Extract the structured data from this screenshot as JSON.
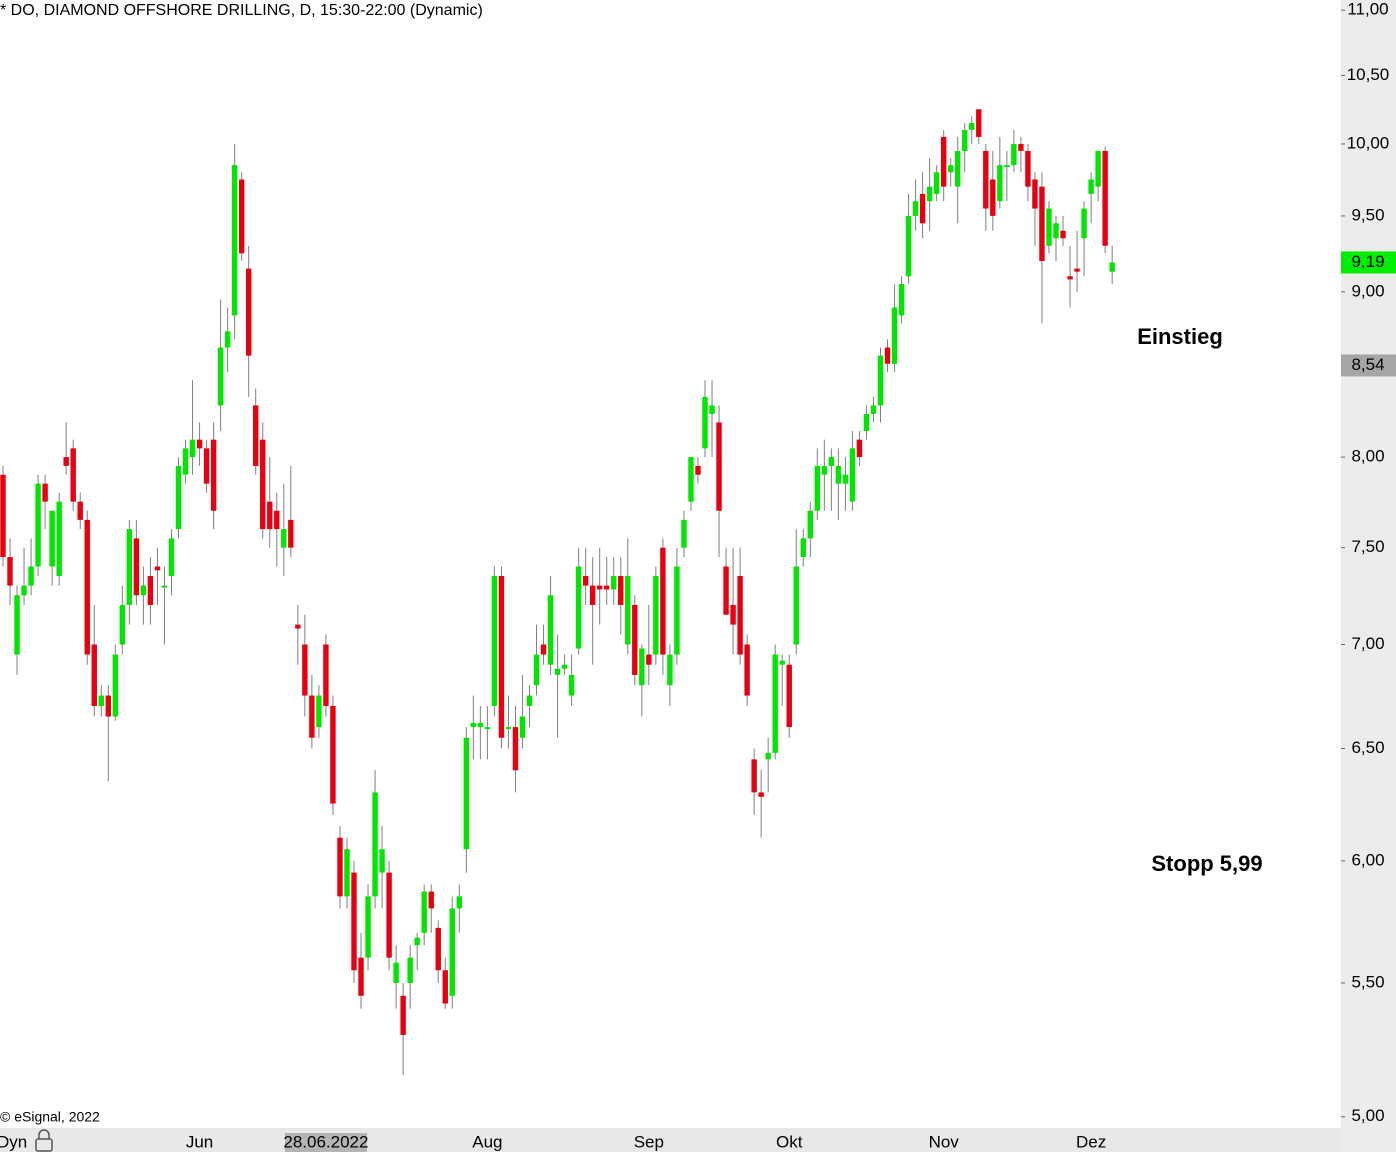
{
  "chart_data": {
    "type": "candlestick",
    "title": "* DO, DIAMOND OFFSHORE DRILLING, D, 15:30-22:00 (Dynamic)",
    "source": "© eSignal, 2022",
    "x_axis_prefix": "Dyn",
    "log_scale": true,
    "ylim": [
      4.96,
      11.08
    ],
    "yticks": [
      {
        "value": 5,
        "label": "5,00"
      },
      {
        "value": 5.5,
        "label": "5,50"
      },
      {
        "value": 6,
        "label": "6,00"
      },
      {
        "value": 6.5,
        "label": "6,50"
      },
      {
        "value": 7,
        "label": "7,00"
      },
      {
        "value": 7.5,
        "label": "7,50"
      },
      {
        "value": 8,
        "label": "8,00"
      },
      {
        "value": 9,
        "label": "9,00"
      },
      {
        "value": 9.5,
        "label": "9,50"
      },
      {
        "value": 10,
        "label": "10,00"
      },
      {
        "value": 10.5,
        "label": "10,50"
      },
      {
        "value": 11,
        "label": "11,00"
      }
    ],
    "up_color": "#00e600",
    "down_color": "#e60012",
    "wick_color": "#7f7f7f",
    "crosshair_index": 46,
    "categories": [
      null,
      null,
      null,
      null,
      null,
      null,
      null,
      null,
      null,
      null,
      null,
      null,
      null,
      null,
      null,
      null,
      null,
      null,
      null,
      null,
      null,
      null,
      null,
      null,
      null,
      null,
      null,
      null,
      "Jun",
      null,
      null,
      null,
      null,
      null,
      null,
      null,
      null,
      null,
      null,
      null,
      null,
      null,
      null,
      null,
      null,
      null,
      "28.06.2022",
      null,
      null,
      null,
      null,
      null,
      null,
      null,
      null,
      null,
      null,
      null,
      null,
      null,
      null,
      null,
      null,
      null,
      null,
      null,
      null,
      null,
      null,
      "Aug",
      null,
      null,
      null,
      null,
      null,
      null,
      null,
      null,
      null,
      null,
      null,
      null,
      null,
      null,
      null,
      null,
      null,
      null,
      null,
      null,
      null,
      null,
      "Sep",
      null,
      null,
      null,
      null,
      null,
      null,
      null,
      null,
      null,
      null,
      null,
      null,
      null,
      null,
      null,
      null,
      null,
      null,
      null,
      "Okt",
      null,
      null,
      null,
      null,
      null,
      null,
      null,
      null,
      null,
      null,
      null,
      null,
      null,
      null,
      null,
      null,
      null,
      null,
      null,
      null,
      null,
      "Nov",
      null,
      null,
      null,
      null,
      null,
      null,
      null,
      null,
      null,
      null,
      null,
      null,
      null,
      null,
      null,
      null,
      null,
      null,
      null,
      null,
      "Dez",
      null,
      null,
      null
    ],
    "open": [
      7.9,
      7.45,
      6.95,
      7.25,
      7.3,
      7.4,
      7.85,
      7.4,
      7.35,
      8.0,
      8.05,
      7.75,
      7.65,
      7.0,
      6.7,
      6.75,
      6.65,
      7.0,
      7.2,
      7.55,
      7.25,
      7.35,
      7.4,
      7.3,
      7.35,
      7.6,
      7.9,
      8.0,
      8.1,
      8.05,
      8.1,
      8.3,
      8.65,
      8.85,
      9.75,
      9.15,
      8.3,
      8.1,
      7.75,
      7.7,
      7.5,
      7.65,
      7.1,
      7.0,
      6.75,
      6.6,
      7.0,
      6.7,
      6.1,
      5.85,
      5.95,
      5.6,
      5.6,
      5.85,
      5.95,
      5.95,
      5.5,
      5.45,
      5.5,
      5.65,
      5.7,
      5.87,
      5.72,
      5.55,
      5.45,
      5.8,
      6.05,
      6.6,
      6.6,
      6.6,
      6.7,
      7.35,
      6.6,
      6.6,
      6.55,
      6.7,
      6.8,
      7.0,
      6.9,
      6.85,
      6.88,
      6.75,
      6.98,
      7.35,
      7.3,
      7.3,
      7.3,
      7.28,
      7.35,
      7.0,
      7.2,
      6.8,
      6.95,
      6.95,
      7.5,
      6.8,
      6.95,
      7.5,
      7.75,
      7.95,
      8.05,
      8.25,
      8.2,
      7.4,
      7.2,
      7.35,
      7.0,
      6.45,
      6.3,
      6.45,
      6.48,
      6.9,
      6.9,
      7.0,
      7.45,
      7.55,
      7.7,
      7.9,
      7.95,
      7.85,
      7.85,
      7.75,
      8.1,
      8.15,
      8.25,
      8.3,
      8.65,
      8.55,
      8.85,
      9.1,
      9.5,
      9.65,
      9.6,
      9.65,
      10.05,
      9.8,
      9.7,
      9.95,
      10.1,
      10.25,
      9.95,
      9.75,
      9.6,
      9.85,
      9.85,
      10.0,
      9.95,
      9.75,
      9.7,
      9.3,
      9.35,
      9.4,
      9.1,
      9.15,
      9.35,
      9.65,
      9.7,
      9.95,
      9.13
    ],
    "high": [
      7.95,
      7.55,
      7.3,
      7.5,
      7.55,
      7.9,
      7.9,
      7.65,
      7.8,
      8.2,
      8.1,
      7.8,
      7.7,
      7.2,
      6.8,
      6.8,
      7.0,
      7.3,
      7.65,
      7.65,
      7.4,
      7.45,
      7.5,
      7.4,
      7.6,
      8.0,
      8.1,
      8.45,
      8.2,
      8.1,
      8.2,
      8.95,
      8.9,
      10.0,
      9.8,
      9.3,
      8.4,
      8.2,
      8.0,
      7.8,
      7.85,
      7.95,
      7.2,
      7.15,
      6.85,
      6.8,
      7.05,
      6.75,
      6.15,
      6.1,
      6.0,
      5.7,
      5.9,
      6.4,
      6.15,
      6.0,
      5.65,
      5.5,
      5.65,
      5.7,
      5.9,
      5.9,
      5.75,
      5.6,
      5.85,
      5.9,
      6.6,
      6.75,
      6.7,
      6.7,
      7.4,
      7.4,
      6.75,
      6.7,
      6.85,
      6.8,
      7.1,
      7.1,
      7.35,
      7.05,
      6.95,
      6.95,
      7.5,
      7.5,
      7.45,
      7.5,
      7.45,
      7.45,
      7.45,
      7.55,
      7.25,
      7.0,
      7.2,
      7.4,
      7.55,
      7.0,
      7.5,
      7.7,
      8.0,
      8.0,
      8.45,
      8.45,
      8.3,
      7.5,
      7.5,
      7.5,
      7.05,
      6.5,
      6.4,
      6.55,
      7.0,
      6.95,
      6.95,
      7.6,
      7.6,
      7.75,
      8.05,
      8.1,
      8.05,
      8.05,
      8.0,
      8.15,
      8.15,
      8.3,
      8.35,
      8.65,
      8.7,
      9.05,
      9.1,
      9.65,
      9.75,
      9.8,
      9.9,
      9.85,
      10.1,
      9.9,
      10.05,
      10.15,
      10.2,
      10.25,
      10.0,
      9.95,
      10.05,
      9.95,
      10.1,
      10.05,
      10.0,
      9.8,
      9.8,
      9.6,
      9.5,
      9.5,
      9.3,
      9.4,
      9.6,
      9.8,
      9.95,
      9.98,
      9.3
    ],
    "low": [
      7.4,
      7.2,
      6.85,
      7.2,
      7.25,
      7.35,
      7.6,
      7.3,
      7.3,
      7.9,
      7.7,
      7.6,
      6.9,
      6.65,
      6.65,
      6.35,
      6.63,
      6.95,
      7.1,
      7.2,
      7.1,
      7.1,
      7.2,
      7.0,
      7.25,
      7.55,
      7.85,
      7.9,
      7.95,
      7.8,
      7.6,
      8.15,
      8.5,
      8.7,
      9.2,
      8.35,
      7.9,
      7.55,
      7.5,
      7.4,
      7.35,
      7.45,
      6.9,
      6.65,
      6.5,
      6.55,
      6.65,
      6.2,
      5.8,
      5.8,
      5.5,
      5.4,
      5.55,
      5.8,
      5.8,
      5.55,
      5.4,
      5.15,
      5.4,
      5.55,
      5.65,
      5.7,
      5.5,
      5.4,
      5.4,
      5.7,
      5.95,
      6.45,
      6.45,
      6.45,
      6.65,
      6.5,
      6.5,
      6.3,
      6.5,
      6.6,
      6.75,
      6.9,
      6.85,
      6.55,
      6.85,
      6.7,
      6.95,
      7.2,
      6.9,
      7.1,
      7.2,
      7.2,
      7.05,
      6.95,
      6.8,
      6.65,
      6.8,
      6.9,
      6.85,
      6.7,
      6.9,
      7.45,
      7.7,
      7.85,
      8.0,
      8.0,
      7.45,
      7.15,
      6.95,
      6.9,
      6.7,
      6.2,
      6.1,
      6.3,
      6.45,
      6.7,
      6.55,
      6.95,
      7.4,
      7.45,
      7.65,
      7.7,
      7.7,
      7.65,
      7.7,
      7.7,
      7.95,
      8.1,
      8.2,
      8.2,
      8.5,
      8.5,
      8.8,
      9.05,
      9.4,
      9.35,
      9.4,
      9.6,
      9.6,
      9.7,
      9.45,
      9.8,
      10.0,
      10.0,
      9.4,
      9.4,
      9.55,
      9.6,
      9.8,
      9.8,
      9.6,
      9.3,
      8.8,
      9.25,
      9.2,
      9.3,
      8.9,
      9.0,
      9.1,
      9.45,
      9.6,
      9.25,
      9.05
    ],
    "close": [
      7.45,
      7.3,
      7.25,
      7.3,
      7.4,
      7.85,
      7.75,
      7.7,
      7.75,
      7.95,
      7.75,
      7.65,
      6.95,
      6.7,
      6.75,
      6.65,
      6.95,
      7.2,
      7.6,
      7.25,
      7.3,
      7.2,
      7.38,
      7.3,
      7.55,
      7.95,
      8.05,
      8.1,
      8.05,
      7.85,
      7.7,
      8.65,
      8.75,
      9.85,
      9.25,
      8.6,
      7.95,
      7.6,
      7.6,
      7.6,
      7.6,
      7.5,
      7.08,
      6.75,
      6.55,
      6.75,
      6.7,
      6.25,
      5.85,
      6.05,
      5.55,
      5.45,
      5.85,
      6.3,
      6.05,
      5.6,
      5.58,
      5.3,
      5.6,
      5.68,
      5.87,
      5.8,
      5.55,
      5.42,
      5.8,
      5.85,
      6.55,
      6.62,
      6.62,
      6.6,
      7.35,
      6.55,
      6.6,
      6.4,
      6.65,
      6.75,
      6.95,
      6.95,
      7.25,
      6.88,
      6.9,
      6.85,
      7.4,
      7.3,
      7.2,
      7.28,
      7.28,
      7.35,
      7.2,
      7.35,
      6.85,
      6.98,
      6.9,
      7.35,
      6.95,
      6.95,
      7.4,
      7.65,
      8.0,
      7.9,
      8.35,
      8.3,
      7.7,
      7.15,
      7.1,
      6.95,
      6.75,
      6.3,
      6.28,
      6.48,
      6.95,
      6.92,
      6.6,
      7.4,
      7.55,
      7.7,
      7.95,
      7.95,
      8.0,
      7.95,
      7.9,
      8.05,
      8.0,
      8.25,
      8.3,
      8.6,
      8.55,
      8.9,
      9.05,
      9.5,
      9.6,
      9.45,
      9.7,
      9.8,
      9.7,
      9.85,
      9.95,
      10.1,
      10.15,
      10.05,
      9.55,
      9.5,
      9.85,
      9.85,
      10.0,
      9.95,
      9.7,
      9.55,
      9.2,
      9.55,
      9.45,
      9.35,
      9.08,
      9.13,
      9.55,
      9.75,
      9.95,
      9.3,
      9.19
    ],
    "last_label": "9,19",
    "last_label_color": "#00ee00",
    "price_markers": [
      {
        "value": 8.54,
        "label": "8,54",
        "color": "#a6a6a6"
      }
    ],
    "annotations": [
      {
        "text": "Einstieg",
        "color": "#0000dd"
      },
      {
        "text": "Stopp 5,99",
        "color": "#ee0000"
      }
    ]
  }
}
